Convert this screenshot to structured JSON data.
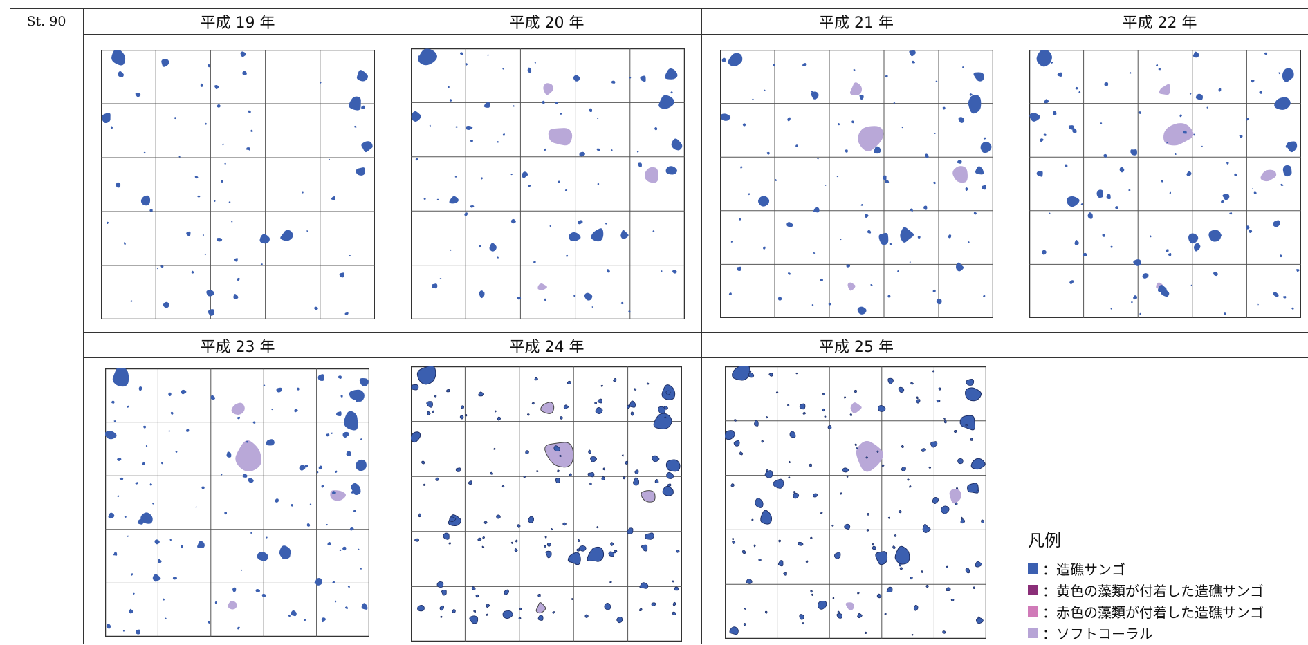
{
  "station_label": "St. 90",
  "panels": [
    {
      "label": "平成 19 年"
    },
    {
      "label": "平成 20 年"
    },
    {
      "label": "平成 21 年"
    },
    {
      "label": "平成 22 年"
    },
    {
      "label": "平成 23 年"
    },
    {
      "label": "平成 24 年"
    },
    {
      "label": "平成 25 年"
    }
  ],
  "legend": {
    "title": "凡例",
    "items": [
      {
        "label": "：造礁サンゴ",
        "color": "#3b5fb0"
      },
      {
        "label": "：黄色の藻類が付着した造礁サンゴ",
        "color": "#8a2e78"
      },
      {
        "label": "：赤色の藻類が付着した造礁サンゴ",
        "color": "#d07ab8"
      },
      {
        "label": "：ソフトコーラル",
        "color": "#b7a4d6"
      }
    ]
  },
  "colors": {
    "coral": "#3b5fb0",
    "soft_coral": "#b9a8d8",
    "grid": "#555555"
  }
}
